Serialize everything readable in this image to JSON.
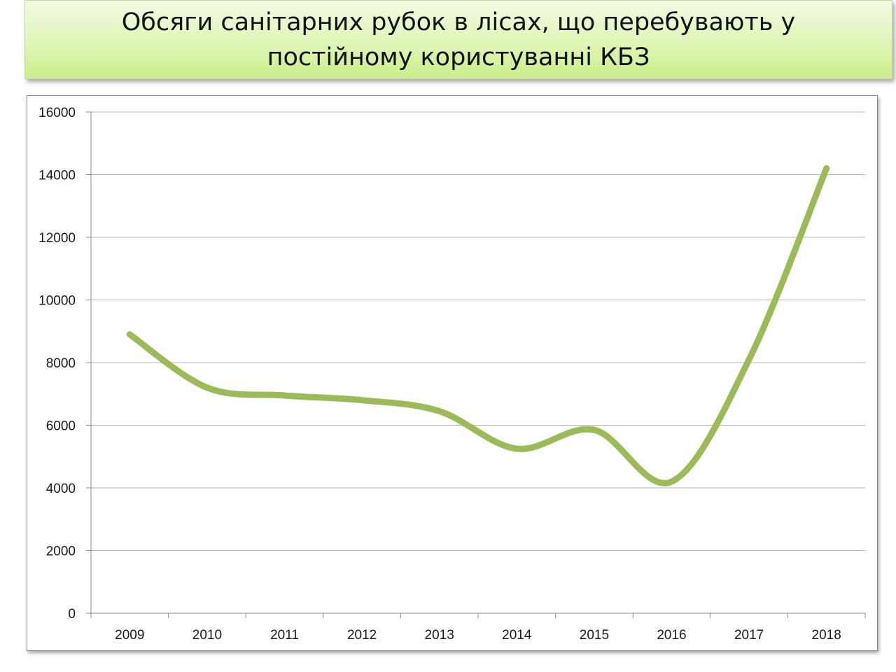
{
  "header": {
    "title": "Обсяги санітарних рубок в лісах, що перебувають у постійному користуванні КБЗ"
  },
  "colors": {
    "line": "#9bbb59",
    "grid": "#b3b3b3",
    "axis": "#8c8c8c",
    "banner_top": "#f3fbe3",
    "banner_bottom": "#cbee8c"
  },
  "chart_data": {
    "type": "line",
    "smooth": true,
    "title": "",
    "xlabel": "",
    "ylabel": "",
    "categories": [
      "2009",
      "2010",
      "2011",
      "2012",
      "2013",
      "2014",
      "2015",
      "2016",
      "2017",
      "2018"
    ],
    "series": [
      {
        "values": [
          8900,
          7200,
          6950,
          6800,
          6450,
          5250,
          5850,
          4200,
          8100,
          14200
        ]
      }
    ],
    "ylim": [
      0,
      16000
    ],
    "yticks": [
      0,
      2000,
      4000,
      6000,
      8000,
      10000,
      12000,
      14000,
      16000
    ],
    "grid": true,
    "legend": "none"
  }
}
